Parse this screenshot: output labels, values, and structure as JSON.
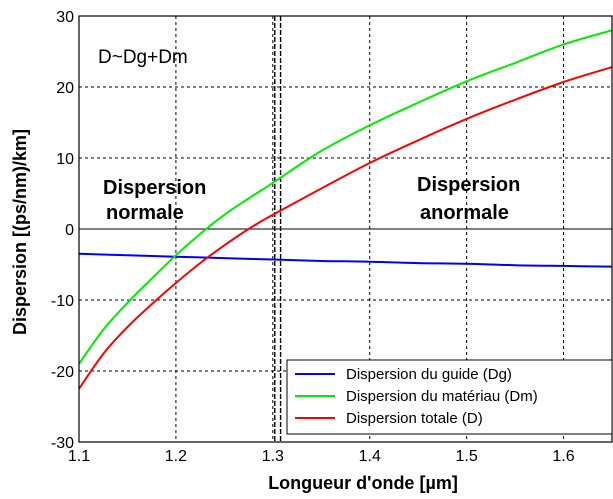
{
  "chart_data": {
    "type": "line",
    "title": "",
    "xlabel": "Longueur d'onde [µm]",
    "ylabel": "Dispersion [(ps/nm)/km]",
    "xlim": [
      1.1,
      1.65
    ],
    "ylim": [
      -30,
      30
    ],
    "xticks": [
      1.1,
      1.2,
      1.3,
      1.4,
      1.5,
      1.6
    ],
    "xtick_labels": [
      "1.1",
      "1.2",
      "1.3",
      "1.4",
      "1.5",
      "1.6"
    ],
    "yticks": [
      -30,
      -20,
      -10,
      0,
      10,
      20,
      30
    ],
    "ytick_labels": [
      "-30",
      "-20",
      "-10",
      "0",
      "10",
      "20",
      "30"
    ],
    "grid": true,
    "legend_position": "bottom-right",
    "zero_wavelength_markers": [
      1.302,
      1.308
    ],
    "series": [
      {
        "name": "Dispersion du guide (Dg)",
        "color": "#0000ff",
        "x": [
          1.1,
          1.15,
          1.2,
          1.25,
          1.3,
          1.35,
          1.4,
          1.45,
          1.5,
          1.55,
          1.6,
          1.65
        ],
        "y": [
          -3.5,
          -3.7,
          -3.9,
          -4.1,
          -4.3,
          -4.5,
          -4.6,
          -4.8,
          -4.9,
          -5.1,
          -5.2,
          -5.3
        ]
      },
      {
        "name": "Dispersion du matériau (Dm)",
        "color": "#00ee00",
        "x": [
          1.1,
          1.125,
          1.15,
          1.175,
          1.2,
          1.225,
          1.25,
          1.275,
          1.3,
          1.35,
          1.4,
          1.45,
          1.5,
          1.55,
          1.6,
          1.65
        ],
        "y": [
          -19,
          -14.2,
          -10.4,
          -7,
          -3.7,
          -0.7,
          2,
          4.3,
          6.5,
          11,
          14.6,
          17.8,
          20.8,
          23.4,
          26,
          28
        ]
      },
      {
        "name": "Dispersion totale (D)",
        "color": "#ff0000",
        "x": [
          1.1,
          1.125,
          1.15,
          1.175,
          1.2,
          1.225,
          1.25,
          1.275,
          1.3,
          1.35,
          1.4,
          1.45,
          1.5,
          1.55,
          1.6,
          1.65
        ],
        "y": [
          -22.5,
          -17.6,
          -13.8,
          -10.6,
          -7.6,
          -4.8,
          -2.3,
          0,
          2,
          5.7,
          9.3,
          12.5,
          15.5,
          18.2,
          20.7,
          22.8
        ]
      }
    ],
    "annotations": [
      {
        "id": "formula",
        "text": "D~Dg+Dm"
      },
      {
        "id": "normal-1",
        "text": "Dispersion"
      },
      {
        "id": "normal-2",
        "text": "normale"
      },
      {
        "id": "anomal-1",
        "text": "Dispersion"
      },
      {
        "id": "anomal-2",
        "text": "anormale"
      }
    ]
  }
}
